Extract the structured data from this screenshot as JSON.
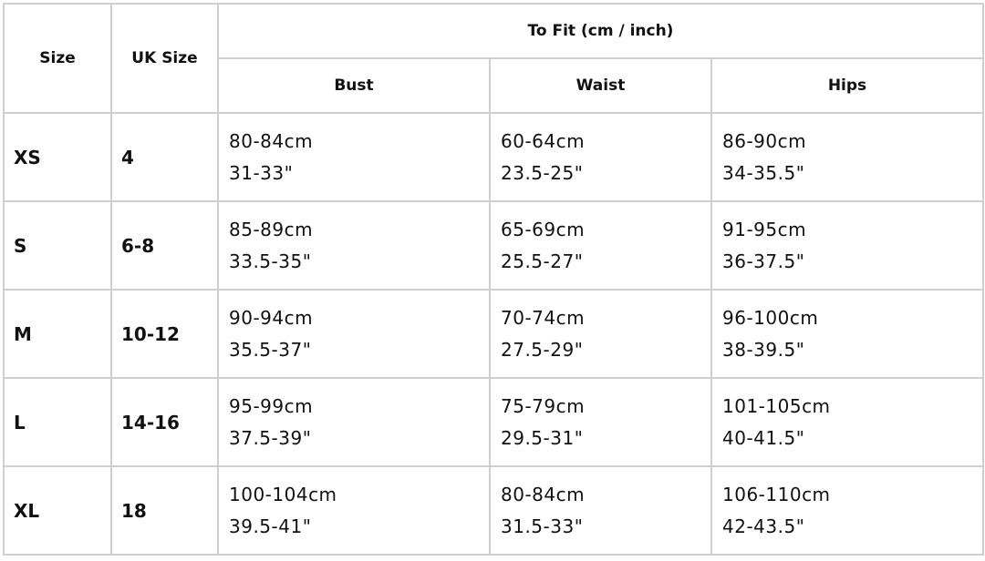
{
  "headers": {
    "size": "Size",
    "uk_size": "UK Size",
    "to_fit": "To Fit (cm / inch)",
    "bust": "Bust",
    "waist": "Waist",
    "hips": "Hips"
  },
  "rows": [
    {
      "size": "XS",
      "uk": "4",
      "bust_cm": "80-84cm",
      "bust_in": "31-33\"",
      "waist_cm": "60-64cm",
      "waist_in": "23.5-25\"",
      "hips_cm": "86-90cm",
      "hips_in": "34-35.5\""
    },
    {
      "size": "S",
      "uk": "6-8",
      "bust_cm": "85-89cm",
      "bust_in": "33.5-35\"",
      "waist_cm": "65-69cm",
      "waist_in": "25.5-27\"",
      "hips_cm": "91-95cm",
      "hips_in": "36-37.5\""
    },
    {
      "size": "M",
      "uk": "10-12",
      "bust_cm": "90-94cm",
      "bust_in": "35.5-37\"",
      "waist_cm": "70-74cm",
      "waist_in": "27.5-29\"",
      "hips_cm": "96-100cm",
      "hips_in": "38-39.5\""
    },
    {
      "size": "L",
      "uk": "14-16",
      "bust_cm": "95-99cm",
      "bust_in": "37.5-39\"",
      "waist_cm": "75-79cm",
      "waist_in": "29.5-31\"",
      "hips_cm": "101-105cm",
      "hips_in": "40-41.5\""
    },
    {
      "size": "XL",
      "uk": "18",
      "bust_cm": "100-104cm",
      "bust_in": "39.5-41\"",
      "waist_cm": "80-84cm",
      "waist_in": "31.5-33\"",
      "hips_cm": "106-110cm",
      "hips_in": "42-43.5\""
    }
  ]
}
